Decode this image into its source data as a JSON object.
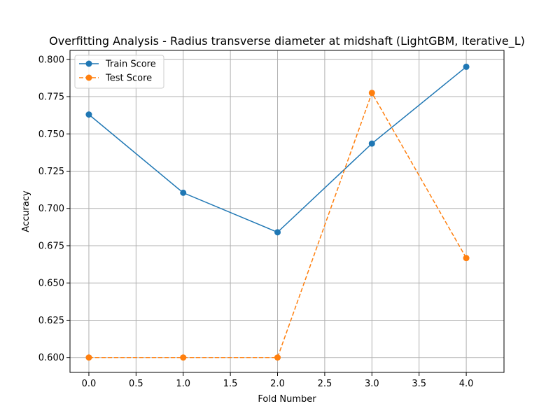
{
  "chart_data": {
    "type": "line",
    "title": "Overfitting Analysis - Radius transverse diameter at midshaft (LightGBM, Iterative_L)",
    "xlabel": "Fold Number",
    "ylabel": "Accuracy",
    "x": [
      0,
      1,
      2,
      3,
      4
    ],
    "xlim": [
      -0.2,
      4.4
    ],
    "ylim": [
      0.59,
      0.806
    ],
    "xticks": [
      0.0,
      0.5,
      1.0,
      1.5,
      2.0,
      2.5,
      3.0,
      3.5,
      4.0
    ],
    "yticks": [
      0.6,
      0.625,
      0.65,
      0.675,
      0.7,
      0.725,
      0.75,
      0.775,
      0.8
    ],
    "xtick_labels": [
      "0.0",
      "0.5",
      "1.0",
      "1.5",
      "2.0",
      "2.5",
      "3.0",
      "3.5",
      "4.0"
    ],
    "ytick_labels": [
      "0.600",
      "0.625",
      "0.650",
      "0.675",
      "0.700",
      "0.725",
      "0.750",
      "0.775",
      "0.800"
    ],
    "grid": true,
    "legend_position": "top-left",
    "series": [
      {
        "name": "Train Score",
        "values": [
          0.763,
          0.7105,
          0.684,
          0.7435,
          0.795
        ],
        "color": "#1f77b4",
        "style": "solid"
      },
      {
        "name": "Test Score",
        "values": [
          0.6,
          0.6,
          0.6,
          0.7775,
          0.6667
        ],
        "color": "#ff7f0e",
        "style": "dashed"
      }
    ]
  }
}
